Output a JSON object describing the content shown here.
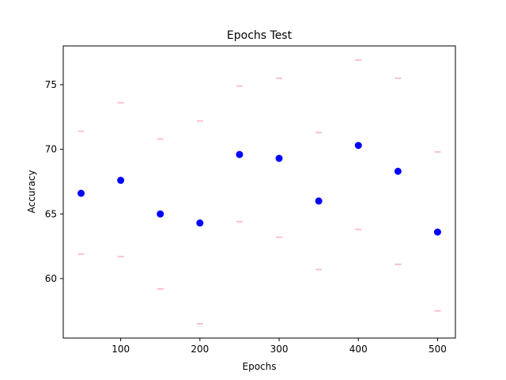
{
  "chart_data": {
    "type": "scatter",
    "title": "Epochs Test",
    "xlabel": "Epochs",
    "ylabel": "Accuracy",
    "xlim": [
      27.5,
      522.5
    ],
    "ylim": [
      55.4,
      78.0
    ],
    "xticks": [
      100,
      200,
      300,
      400,
      500
    ],
    "yticks": [
      60,
      65,
      70,
      75
    ],
    "grid": false,
    "x": [
      50,
      100,
      150,
      200,
      250,
      300,
      350,
      400,
      450,
      500
    ],
    "y": [
      66.6,
      67.6,
      65.0,
      64.3,
      69.6,
      69.3,
      66.0,
      70.3,
      68.3,
      63.6
    ],
    "upper": [
      71.4,
      73.6,
      70.8,
      72.2,
      74.9,
      75.5,
      71.3,
      76.9,
      75.5,
      69.8
    ],
    "lower": [
      61.9,
      61.7,
      59.2,
      56.5,
      64.4,
      63.2,
      60.7,
      63.8,
      61.1,
      57.5
    ],
    "point_color": "#0000ff",
    "band_color": "#ffc0cb"
  }
}
